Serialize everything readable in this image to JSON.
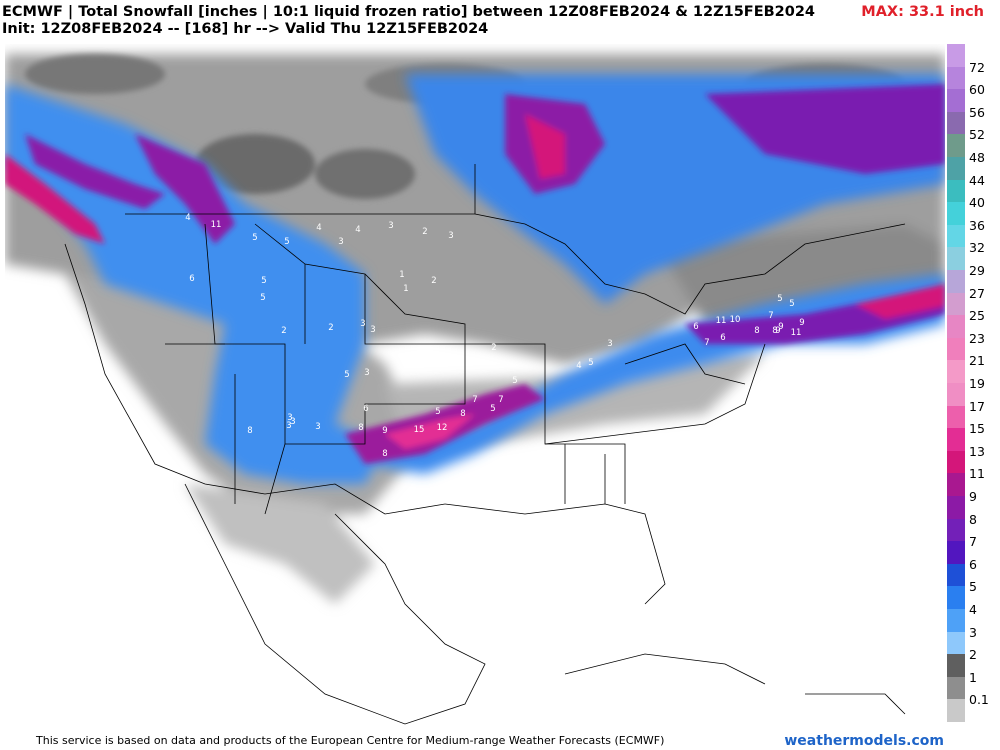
{
  "header": {
    "line1": "ECMWF | Total Snowfall [inches | 10:1 liquid frozen ratio] between 12Z08FEB2024 & 12Z15FEB2024",
    "line2": "Init: 12Z08FEB2024 -- [168] hr --> Valid Thu 12Z15FEB2024",
    "max": "MAX: 33.1 inch"
  },
  "colorbar": {
    "labels": [
      "72",
      "60",
      "56",
      "52",
      "48",
      "44",
      "40",
      "36",
      "32",
      "29",
      "27",
      "25",
      "23",
      "21",
      "19",
      "17",
      "15",
      "13",
      "11",
      "9",
      "8",
      "7",
      "6",
      "5",
      "4",
      "3",
      "2",
      "1",
      "0.1"
    ],
    "colors": [
      "#c89be6",
      "#b684dd",
      "#a46ed3",
      "#8a6aaf",
      "#6f9b8b",
      "#4ea2a6",
      "#3bbdbf",
      "#44d1da",
      "#63d6e6",
      "#8bcfe0",
      "#b7a6d9",
      "#d39dcf",
      "#e786c4",
      "#f07fbc",
      "#f49ac8",
      "#f08ec4",
      "#ed5fac",
      "#e32d94",
      "#d4167a",
      "#a91890",
      "#8c1aa6",
      "#7320b8",
      "#5216bf",
      "#1e50d7",
      "#2a7ff0",
      "#4ea1f7",
      "#8ec8fb",
      "#5f5f5f",
      "#8e8e8e",
      "#c9c9c9"
    ]
  },
  "map_labels": [
    {
      "t": "4"
    },
    {
      "t": "11"
    },
    {
      "t": "5"
    },
    {
      "t": "5"
    },
    {
      "t": "4"
    },
    {
      "t": "3"
    },
    {
      "t": "4"
    },
    {
      "t": "3"
    },
    {
      "t": "2"
    },
    {
      "t": "3"
    },
    {
      "t": "6"
    },
    {
      "t": "5"
    },
    {
      "t": "5"
    },
    {
      "t": "2"
    },
    {
      "t": "2"
    },
    {
      "t": "3"
    },
    {
      "t": "3"
    },
    {
      "t": "5"
    },
    {
      "t": "3"
    },
    {
      "t": "3"
    },
    {
      "t": "8"
    },
    {
      "t": "3"
    },
    {
      "t": "3"
    },
    {
      "t": "3"
    },
    {
      "t": "6"
    },
    {
      "t": "8"
    },
    {
      "t": "9"
    },
    {
      "t": "15"
    },
    {
      "t": "12"
    },
    {
      "t": "8"
    },
    {
      "t": "8"
    },
    {
      "t": "5"
    },
    {
      "t": "7"
    },
    {
      "t": "7"
    },
    {
      "t": "5"
    },
    {
      "t": "5"
    },
    {
      "t": "4"
    },
    {
      "t": "5"
    },
    {
      "t": "3"
    },
    {
      "t": "2"
    },
    {
      "t": "6"
    },
    {
      "t": "11"
    },
    {
      "t": "10"
    },
    {
      "t": "7"
    },
    {
      "t": "8"
    },
    {
      "t": "5"
    },
    {
      "t": "5"
    },
    {
      "t": "11"
    },
    {
      "t": "9"
    },
    {
      "t": "9"
    },
    {
      "t": "6"
    },
    {
      "t": "7"
    },
    {
      "t": "9"
    },
    {
      "t": "8"
    },
    {
      "t": "1"
    },
    {
      "t": "1"
    },
    {
      "t": "2"
    }
  ],
  "footer": {
    "disclaimer": "This service is based on data and products of the European Centre for Medium-range Weather Forecasts (ECMWF)",
    "brand": "weathermodels.com"
  }
}
